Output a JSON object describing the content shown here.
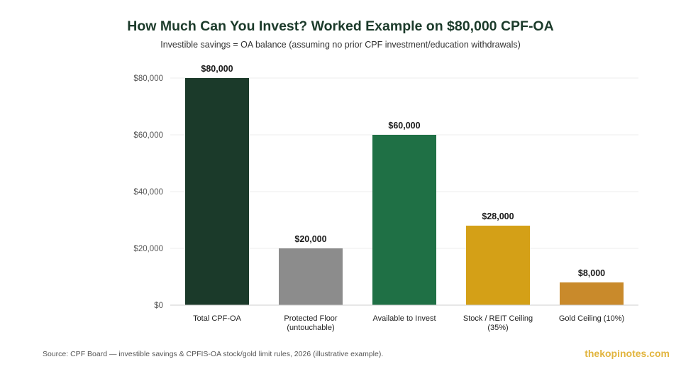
{
  "chart_data": {
    "type": "bar",
    "title": "How Much Can You Invest? Worked Example on $80,000 CPF-OA",
    "subtitle": "Investible savings = OA balance (assuming no prior CPF investment/education withdrawals)",
    "categories": [
      [
        "Total CPF-OA"
      ],
      [
        "Protected Floor",
        "(untouchable)"
      ],
      [
        "Available to Invest"
      ],
      [
        "Stock / REIT Ceiling",
        "(35%)"
      ],
      [
        "Gold Ceiling (10%)"
      ]
    ],
    "values": [
      80000,
      20000,
      60000,
      28000,
      8000
    ],
    "value_labels": [
      "$80,000",
      "$20,000",
      "$60,000",
      "$28,000",
      "$8,000"
    ],
    "colors": [
      "#1b3a2a",
      "#8c8c8c",
      "#1f7045",
      "#d4a017",
      "#c98a2b"
    ],
    "yticks": [
      0,
      20000,
      40000,
      60000,
      80000
    ],
    "ytick_labels": [
      "$0",
      "$20,000",
      "$40,000",
      "$60,000",
      "$80,000"
    ],
    "ylim": [
      0,
      80000
    ],
    "grid": true,
    "xlabel": "",
    "ylabel": ""
  },
  "footer": {
    "source": "Source: CPF Board — investible savings & CPFIS-OA stock/gold limit rules, 2026 (illustrative example).",
    "brand": "thekopinotes.com"
  }
}
